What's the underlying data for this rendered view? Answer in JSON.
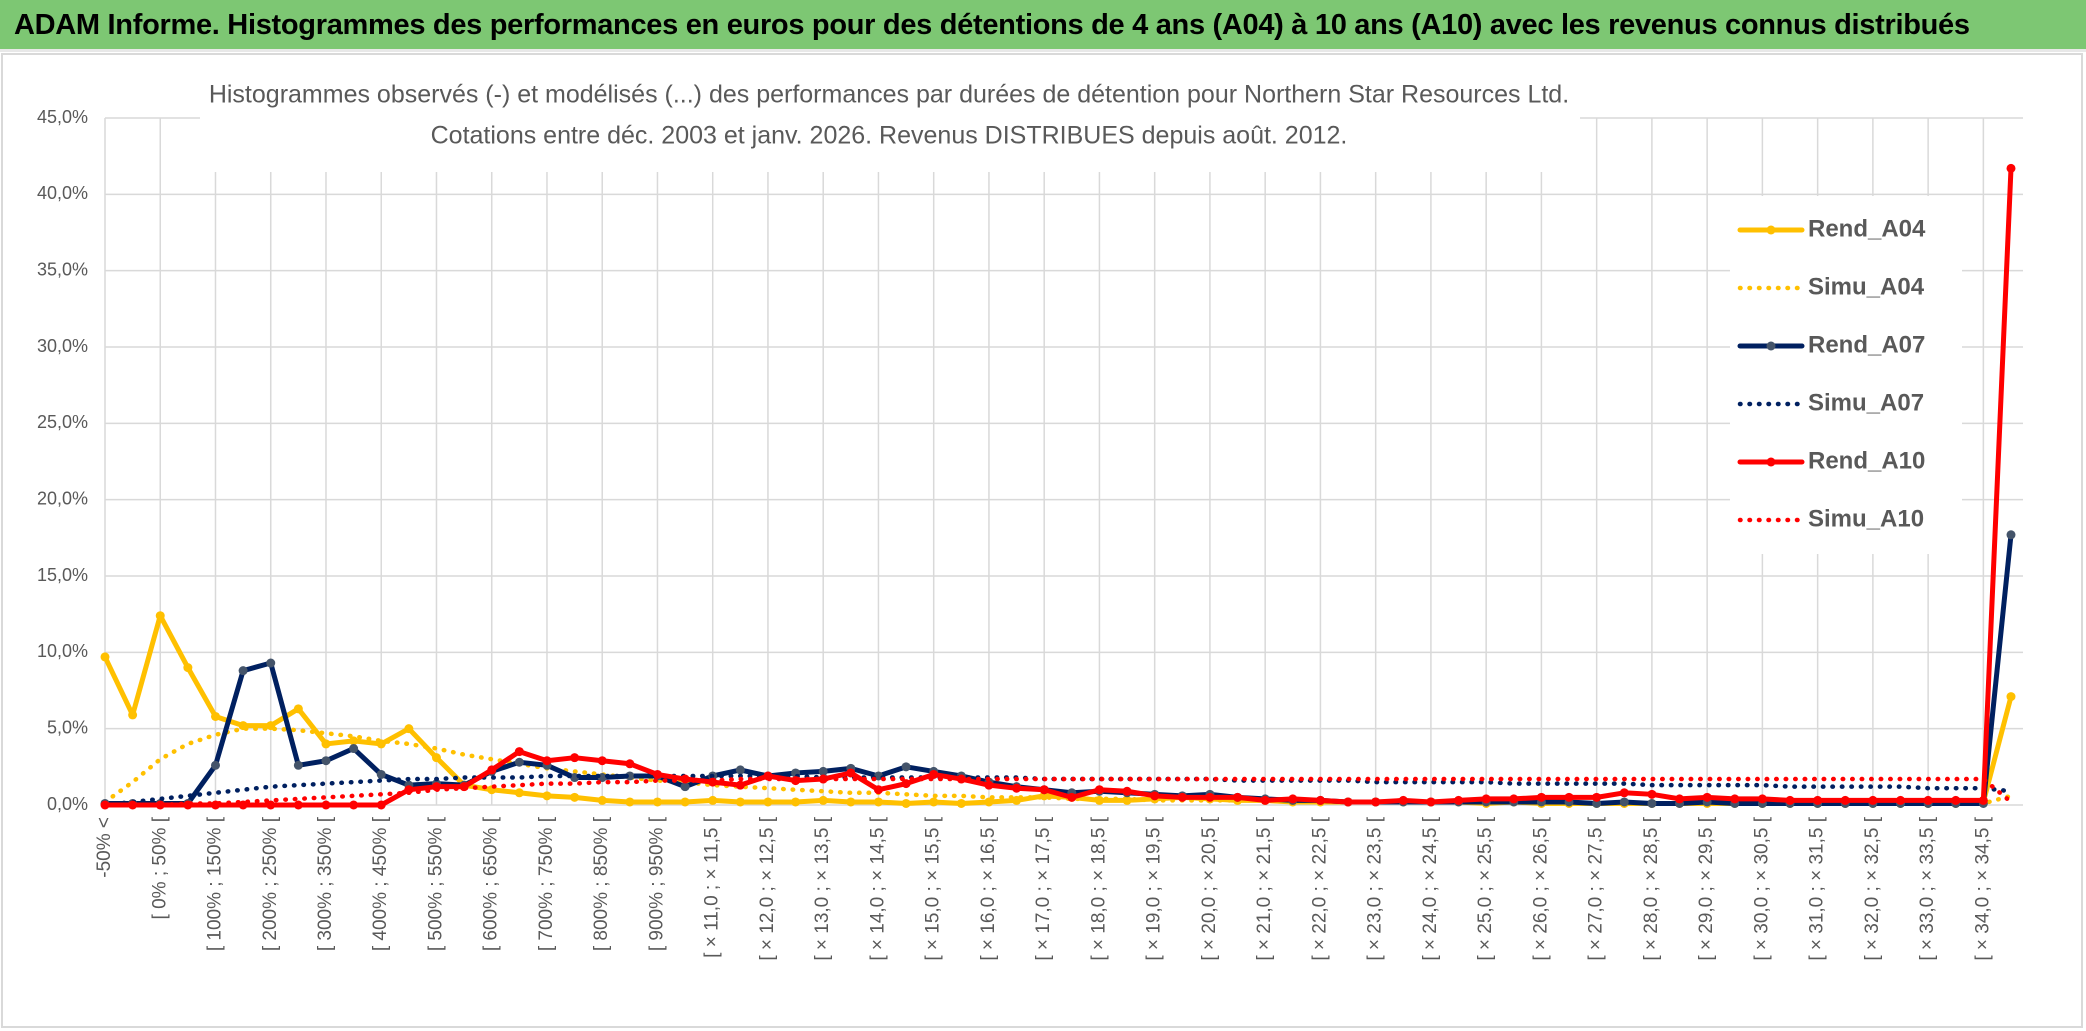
{
  "header": {
    "title": "ADAM Informe. Histogrammes des performances en euros pour des détentions de 4 ans (A04) à 10 ans (A10) avec les revenus connus distribués"
  },
  "chart_data": {
    "type": "line",
    "title": "Histogrammes observés (-) et modélisés (...) des performances par durées de détention pour Northern Star Resources Ltd.",
    "subtitle": "Cotations entre déc. 2003 et janv. 2026. Revenus DISTRIBUES depuis août. 2012.",
    "categories": [
      "-50% <",
      null,
      "[ 0% ; 50% [",
      null,
      "[ 100% ; 150% [",
      null,
      "[ 200% ; 250% [",
      null,
      "[ 300% ; 350% [",
      null,
      "[ 400% ; 450% [",
      null,
      "[ 500% ; 550% [",
      null,
      "[ 600% ; 650% [",
      null,
      "[ 700% ; 750% [",
      null,
      "[ 800% ; 850% [",
      null,
      "[ 900% ; 950% [",
      null,
      "[ × 11,0 ; × 11,5 [",
      null,
      "[ × 12,0 ; × 12,5 [",
      null,
      "[ × 13,0 ; × 13,5 [",
      null,
      "[ × 14,0 ; × 14,5 [",
      null,
      "[ × 15,0 ; × 15,5 [",
      null,
      "[ × 16,0 ; × 16,5 [",
      null,
      "[ × 17,0 ; × 17,5 [",
      null,
      "[ × 18,0 ; × 18,5 [",
      null,
      "[ × 19,0 ; × 19,5 [",
      null,
      "[ × 20,0 ; × 20,5 [",
      null,
      "[ × 21,0 ; × 21,5 [",
      null,
      "[ × 22,0 ; × 22,5 [",
      null,
      "[ × 23,0 ; × 23,5 [",
      null,
      "[ × 24,0 ; × 24,5 [",
      null,
      "[ × 25,0 ; × 25,5 [",
      null,
      "[ × 26,0 ; × 26,5 [",
      null,
      "[ × 27,0 ; × 27,5 [",
      null,
      "[ × 28,0 ; × 28,5 [",
      null,
      "[ × 29,0 ; × 29,5 [",
      null,
      "[ × 30,0 ; × 30,5 [",
      null,
      "[ × 31,0 ; × 31,5 [",
      null,
      "[ × 32,0 ; × 32,5 [",
      null,
      "[ × 33,0 ; × 33,5 [",
      null,
      "[ × 34,0 ; × 34,5 [",
      null
    ],
    "series": [
      {
        "name": "Rend_A04",
        "color": "#ffc000",
        "style": "solid",
        "values": [
          9.7,
          5.9,
          12.4,
          9.0,
          5.8,
          5.2,
          5.2,
          6.3,
          4.0,
          4.2,
          4.0,
          5.0,
          3.1,
          1.3,
          1.0,
          0.8,
          0.6,
          0.5,
          0.3,
          0.2,
          0.2,
          0.2,
          0.3,
          0.2,
          0.2,
          0.2,
          0.3,
          0.2,
          0.2,
          0.1,
          0.2,
          0.1,
          0.2,
          0.3,
          0.6,
          0.5,
          0.3,
          0.3,
          0.4,
          0.5,
          0.4,
          0.3,
          0.3,
          0.2,
          0.2,
          0.2,
          0.2,
          0.2,
          0.2,
          0.2,
          0.1,
          0.2,
          0.1,
          0.1,
          0.1,
          0.1,
          0.1,
          0.1,
          0.1,
          0.1,
          0.1,
          0.1,
          0.1,
          0.1,
          0.1,
          0.1,
          0.1,
          0.1,
          0.2,
          7.1
        ]
      },
      {
        "name": "Simu_A04",
        "color": "#ffc000",
        "style": "dotted",
        "values": [
          0.2,
          1.5,
          3.0,
          4.0,
          4.6,
          5.0,
          5.0,
          4.9,
          4.7,
          4.5,
          4.2,
          4.0,
          3.7,
          3.3,
          3.0,
          2.7,
          2.4,
          2.2,
          2.0,
          1.8,
          1.6,
          1.5,
          1.3,
          1.2,
          1.1,
          1.0,
          0.9,
          0.8,
          0.8,
          0.7,
          0.6,
          0.6,
          0.5,
          0.5,
          0.5,
          0.4,
          0.4,
          0.4,
          0.3,
          0.3,
          0.3,
          0.3,
          0.3,
          0.2,
          0.2,
          0.2,
          0.2,
          0.2,
          0.2,
          0.2,
          0.2,
          0.2,
          0.2,
          0.2,
          0.1,
          0.1,
          0.1,
          0.1,
          0.1,
          0.1,
          0.1,
          0.1,
          0.1,
          0.1,
          0.1,
          0.1,
          0.1,
          0.1,
          0.1,
          0.6
        ]
      },
      {
        "name": "Rend_A07",
        "color": "#002060",
        "marker_color": "#44546a",
        "style": "solid",
        "values": [
          0.1,
          0.1,
          0.1,
          0.1,
          2.6,
          8.8,
          9.3,
          2.6,
          2.9,
          3.7,
          2.0,
          1.3,
          1.4,
          1.3,
          2.2,
          2.8,
          2.6,
          1.8,
          1.8,
          1.9,
          1.9,
          1.2,
          1.9,
          2.3,
          1.9,
          2.1,
          2.2,
          2.4,
          1.9,
          2.5,
          2.2,
          1.9,
          1.5,
          1.2,
          1.0,
          0.8,
          0.9,
          0.8,
          0.7,
          0.6,
          0.7,
          0.5,
          0.4,
          0.3,
          0.3,
          0.2,
          0.2,
          0.2,
          0.2,
          0.2,
          0.2,
          0.2,
          0.2,
          0.2,
          0.1,
          0.2,
          0.1,
          0.1,
          0.2,
          0.1,
          0.1,
          0.1,
          0.1,
          0.1,
          0.1,
          0.1,
          0.1,
          0.1,
          0.1,
          17.7
        ]
      },
      {
        "name": "Simu_A07",
        "color": "#002060",
        "style": "dotted",
        "values": [
          0.0,
          0.2,
          0.4,
          0.6,
          0.8,
          1.0,
          1.2,
          1.3,
          1.4,
          1.5,
          1.6,
          1.7,
          1.7,
          1.8,
          1.8,
          1.8,
          1.9,
          1.9,
          1.9,
          1.9,
          1.9,
          1.9,
          1.9,
          1.9,
          1.9,
          1.9,
          1.8,
          1.8,
          1.8,
          1.8,
          1.8,
          1.8,
          1.8,
          1.8,
          1.7,
          1.7,
          1.7,
          1.7,
          1.7,
          1.7,
          1.7,
          1.6,
          1.6,
          1.6,
          1.6,
          1.6,
          1.5,
          1.5,
          1.5,
          1.5,
          1.5,
          1.4,
          1.4,
          1.4,
          1.4,
          1.4,
          1.3,
          1.3,
          1.3,
          1.3,
          1.3,
          1.2,
          1.2,
          1.2,
          1.2,
          1.2,
          1.1,
          1.1,
          1.1,
          0.9
        ]
      },
      {
        "name": "Rend_A10",
        "color": "#ff0000",
        "style": "solid",
        "values": [
          0.0,
          0.0,
          0.0,
          0.0,
          0.0,
          0.0,
          0.0,
          0.0,
          0.0,
          0.0,
          0.0,
          1.0,
          1.2,
          1.2,
          2.3,
          3.5,
          2.9,
          3.1,
          2.9,
          2.7,
          2.0,
          1.7,
          1.5,
          1.3,
          1.9,
          1.6,
          1.7,
          2.1,
          1.0,
          1.4,
          2.0,
          1.7,
          1.3,
          1.1,
          1.0,
          0.5,
          1.0,
          0.9,
          0.6,
          0.5,
          0.5,
          0.5,
          0.3,
          0.4,
          0.3,
          0.2,
          0.2,
          0.3,
          0.2,
          0.3,
          0.4,
          0.4,
          0.5,
          0.5,
          0.5,
          0.8,
          0.7,
          0.4,
          0.5,
          0.4,
          0.4,
          0.3,
          0.3,
          0.3,
          0.3,
          0.3,
          0.3,
          0.3,
          0.3,
          41.7
        ]
      },
      {
        "name": "Simu_A10",
        "color": "#ff0000",
        "style": "dotted",
        "values": [
          0.0,
          0.0,
          0.0,
          0.1,
          0.1,
          0.2,
          0.3,
          0.4,
          0.5,
          0.6,
          0.7,
          0.8,
          1.0,
          1.1,
          1.2,
          1.3,
          1.4,
          1.4,
          1.5,
          1.5,
          1.6,
          1.6,
          1.6,
          1.7,
          1.7,
          1.7,
          1.7,
          1.7,
          1.7,
          1.7,
          1.7,
          1.7,
          1.7,
          1.7,
          1.7,
          1.7,
          1.7,
          1.7,
          1.7,
          1.7,
          1.7,
          1.7,
          1.7,
          1.7,
          1.7,
          1.7,
          1.7,
          1.7,
          1.7,
          1.7,
          1.7,
          1.7,
          1.7,
          1.7,
          1.7,
          1.7,
          1.7,
          1.7,
          1.7,
          1.7,
          1.7,
          1.7,
          1.7,
          1.7,
          1.7,
          1.7,
          1.7,
          1.7,
          1.7,
          0.2
        ]
      }
    ],
    "ylim": [
      0,
      45
    ],
    "yticks": [
      {
        "value": 0,
        "label": "0,0%"
      },
      {
        "value": 5,
        "label": "5,0%"
      },
      {
        "value": 10,
        "label": "10,0%"
      },
      {
        "value": 15,
        "label": "15,0%"
      },
      {
        "value": 20,
        "label": "20,0%"
      },
      {
        "value": 25,
        "label": "25,0%"
      },
      {
        "value": 30,
        "label": "30,0%"
      },
      {
        "value": 35,
        "label": "35,0%"
      },
      {
        "value": 40,
        "label": "40,0%"
      },
      {
        "value": 45,
        "label": "45,0%"
      }
    ],
    "grid": true,
    "legend": "right"
  }
}
